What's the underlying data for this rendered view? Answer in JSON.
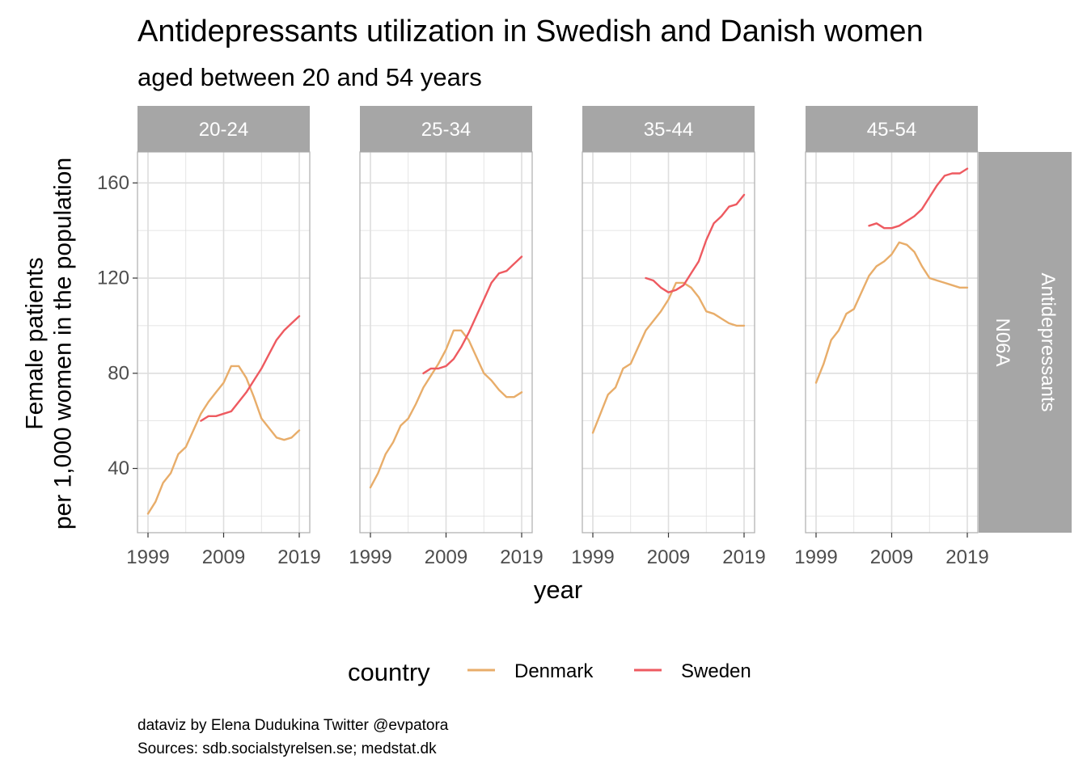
{
  "title": "Antidepressants utilization in Swedish and Danish women",
  "subtitle": "aged between 20 and 54 years",
  "caption": {
    "line1": "dataviz by Elena Dudukina Twitter @evpatora",
    "line2": "Sources: sdb.socialstyrelsen.se; medstat.dk"
  },
  "colors": {
    "Denmark": "#E8AD6A",
    "Sweden": "#EE5A60",
    "strip": "#A6A6A6",
    "grid": "#DEDEDE",
    "panel_border": "#B3B3B3"
  },
  "chart_data": {
    "type": "line",
    "xlabel": "year",
    "ylabel_lines": [
      "Female patients",
      "per 1,000 women in the population"
    ],
    "xlim": [
      1999,
      2019
    ],
    "ylim": [
      13,
      173
    ],
    "xticks": [
      1999,
      2009,
      2019
    ],
    "yticks": [
      40,
      80,
      120,
      160
    ],
    "grid": true,
    "row_facet_label": [
      "N06A",
      "Antidepressants"
    ],
    "legend": {
      "title": "country",
      "position": "bottom",
      "entries": [
        "Denmark",
        "Sweden"
      ]
    },
    "facets": [
      {
        "label": "20-24",
        "series": [
          {
            "name": "Denmark",
            "x": [
              1999,
              2000,
              2001,
              2002,
              2003,
              2004,
              2005,
              2006,
              2007,
              2008,
              2009,
              2010,
              2011,
              2012,
              2013,
              2014,
              2015,
              2016,
              2017,
              2018,
              2019
            ],
            "y": [
              21,
              26,
              34,
              38,
              46,
              49,
              56,
              63,
              68,
              72,
              76,
              83,
              83,
              78,
              70,
              61,
              57,
              53,
              52,
              53,
              56
            ]
          },
          {
            "name": "Sweden",
            "x": [
              2006,
              2007,
              2008,
              2009,
              2010,
              2011,
              2012,
              2013,
              2014,
              2015,
              2016,
              2017,
              2018,
              2019
            ],
            "y": [
              60,
              62,
              62,
              63,
              64,
              68,
              72,
              77,
              82,
              88,
              94,
              98,
              101,
              104
            ]
          }
        ]
      },
      {
        "label": "25-34",
        "series": [
          {
            "name": "Denmark",
            "x": [
              1999,
              2000,
              2001,
              2002,
              2003,
              2004,
              2005,
              2006,
              2007,
              2008,
              2009,
              2010,
              2011,
              2012,
              2013,
              2014,
              2015,
              2016,
              2017,
              2018,
              2019
            ],
            "y": [
              32,
              38,
              46,
              51,
              58,
              61,
              67,
              74,
              79,
              84,
              90,
              98,
              98,
              94,
              87,
              80,
              77,
              73,
              70,
              70,
              72
            ]
          },
          {
            "name": "Sweden",
            "x": [
              2006,
              2007,
              2008,
              2009,
              2010,
              2011,
              2012,
              2013,
              2014,
              2015,
              2016,
              2017,
              2018,
              2019
            ],
            "y": [
              80,
              82,
              82,
              83,
              86,
              91,
              97,
              104,
              111,
              118,
              122,
              123,
              126,
              129
            ]
          }
        ]
      },
      {
        "label": "35-44",
        "series": [
          {
            "name": "Denmark",
            "x": [
              1999,
              2000,
              2001,
              2002,
              2003,
              2004,
              2005,
              2006,
              2007,
              2008,
              2009,
              2010,
              2011,
              2012,
              2013,
              2014,
              2015,
              2016,
              2017,
              2018,
              2019
            ],
            "y": [
              55,
              63,
              71,
              74,
              82,
              84,
              91,
              98,
              102,
              106,
              111,
              118,
              118,
              116,
              112,
              106,
              105,
              103,
              101,
              100,
              100
            ]
          },
          {
            "name": "Sweden",
            "x": [
              2006,
              2007,
              2008,
              2009,
              2010,
              2011,
              2012,
              2013,
              2014,
              2015,
              2016,
              2017,
              2018,
              2019
            ],
            "y": [
              120,
              119,
              116,
              114,
              115,
              117,
              122,
              127,
              136,
              143,
              146,
              150,
              151,
              155
            ]
          }
        ]
      },
      {
        "label": "45-54",
        "series": [
          {
            "name": "Denmark",
            "x": [
              1999,
              2000,
              2001,
              2002,
              2003,
              2004,
              2005,
              2006,
              2007,
              2008,
              2009,
              2010,
              2011,
              2012,
              2013,
              2014,
              2015,
              2016,
              2017,
              2018,
              2019
            ],
            "y": [
              76,
              84,
              94,
              98,
              105,
              107,
              114,
              121,
              125,
              127,
              130,
              135,
              134,
              131,
              125,
              120,
              119,
              118,
              117,
              116,
              116
            ]
          },
          {
            "name": "Sweden",
            "x": [
              2006,
              2007,
              2008,
              2009,
              2010,
              2011,
              2012,
              2013,
              2014,
              2015,
              2016,
              2017,
              2018,
              2019
            ],
            "y": [
              142,
              143,
              141,
              141,
              142,
              144,
              146,
              149,
              154,
              159,
              163,
              164,
              164,
              166
            ]
          }
        ]
      }
    ]
  }
}
